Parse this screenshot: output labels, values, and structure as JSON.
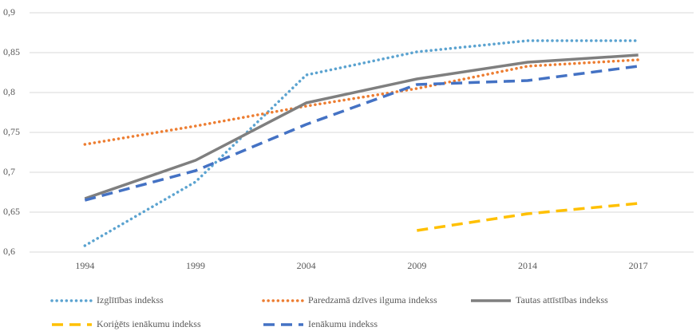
{
  "chart_data": {
    "type": "line",
    "categories": [
      "1994",
      "1999",
      "2004",
      "2009",
      "2014",
      "2017"
    ],
    "series": [
      {
        "name": "Izglītības indekss",
        "color": "#5ba3d0",
        "style": "dotted",
        "values": [
          0.608,
          0.688,
          0.822,
          0.851,
          0.865,
          0.865
        ]
      },
      {
        "name": "Paredzamā dzīves ilguma indekss",
        "color": "#ed7d31",
        "style": "dotted",
        "values": [
          0.735,
          0.758,
          0.783,
          0.805,
          0.833,
          0.841
        ]
      },
      {
        "name": "Tautas attīstības indekss",
        "color": "#7f7f7f",
        "style": "solid",
        "values": [
          0.667,
          0.715,
          0.787,
          0.817,
          0.838,
          0.847
        ]
      },
      {
        "name": "Koriģēts ienākumu indekss",
        "color": "#ffc000",
        "style": "dashed",
        "values": [
          null,
          null,
          null,
          0.627,
          0.648,
          0.661
        ]
      },
      {
        "name": "Ienākumu indekss",
        "color": "#4472c4",
        "style": "dashed",
        "values": [
          0.665,
          0.702,
          0.76,
          0.81,
          0.815,
          0.833
        ]
      }
    ],
    "ylim": [
      0.6,
      0.9
    ],
    "yticks": [
      {
        "value": 0.6,
        "label": "0,6"
      },
      {
        "value": 0.65,
        "label": "0,65"
      },
      {
        "value": 0.7,
        "label": "0,7"
      },
      {
        "value": 0.75,
        "label": "0,75"
      },
      {
        "value": 0.8,
        "label": "0,8"
      },
      {
        "value": 0.85,
        "label": "0,85"
      },
      {
        "value": 0.9,
        "label": "0,9"
      }
    ],
    "grid": true,
    "legend": "bottom"
  }
}
